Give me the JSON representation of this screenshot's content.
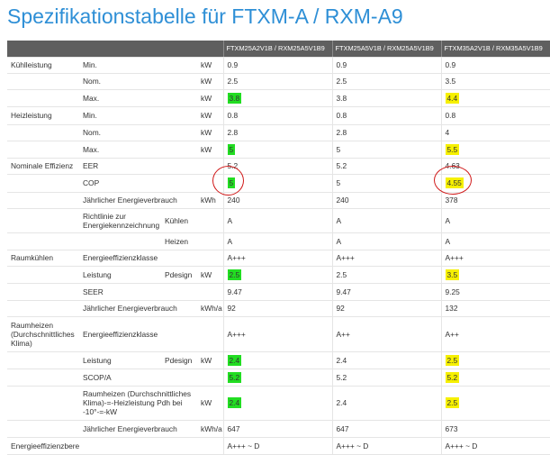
{
  "title": "Spezifikationstabelle für FTXM-A / RXM-A9",
  "headers": [
    "FTXM25A2V1B / RXM25A5V1B9",
    "FTXM25A5V1B / RXM25A5V1B9",
    "FTXM35A2V1B / RXM35A5V1B9"
  ],
  "rows": [
    {
      "g": "Kühlleistung",
      "p": "Min.",
      "u": "kW",
      "v": [
        "0.9",
        "0.9",
        "0.9"
      ]
    },
    {
      "g": "",
      "p": "Nom.",
      "u": "kW",
      "v": [
        "2.5",
        "2.5",
        "3.5"
      ]
    },
    {
      "g": "",
      "p": "Max.",
      "u": "kW",
      "v": [
        "3.8",
        "3.8",
        "4.4"
      ]
    },
    {
      "g": "Heizleistung",
      "p": "Min.",
      "u": "kW",
      "v": [
        "0.8",
        "0.8",
        "0.8"
      ]
    },
    {
      "g": "",
      "p": "Nom.",
      "u": "kW",
      "v": [
        "2.8",
        "2.8",
        "4"
      ]
    },
    {
      "g": "",
      "p": "Max.",
      "u": "kW",
      "v": [
        "5",
        "5",
        "5.5"
      ]
    },
    {
      "g": "Nominale Effizienz",
      "p": "EER",
      "u": "",
      "v": [
        "5.2",
        "5.2",
        "4.63"
      ]
    },
    {
      "g": "",
      "p": "COP",
      "u": "",
      "v": [
        "5",
        "5",
        "4.55"
      ]
    },
    {
      "g": "",
      "p": "Jährlicher Energieverbrauch",
      "u": "kWh",
      "v": [
        "240",
        "240",
        "378"
      ]
    },
    {
      "g": "",
      "p": "Richtlinie zur Energiekennzeichnung",
      "s": "Kühlen",
      "u": "",
      "v": [
        "A",
        "A",
        "A"
      ]
    },
    {
      "g": "",
      "p": "",
      "s": "Heizen",
      "u": "",
      "v": [
        "A",
        "A",
        "A"
      ]
    },
    {
      "g": "Raumkühlen",
      "p": "Energieeffizienzklasse",
      "u": "",
      "v": [
        "A+++",
        "A+++",
        "A+++"
      ]
    },
    {
      "g": "",
      "p": "Leistung",
      "s": "Pdesign",
      "u": "kW",
      "v": [
        "2.5",
        "2.5",
        "3.5"
      ]
    },
    {
      "g": "",
      "p": "SEER",
      "u": "",
      "v": [
        "9.47",
        "9.47",
        "9.25"
      ]
    },
    {
      "g": "",
      "p": "Jährlicher Energieverbrauch",
      "u": "kWh/a",
      "v": [
        "92",
        "92",
        "132"
      ]
    },
    {
      "g": "Raumheizen (Durchschnittliches Klima)",
      "p": "Energieeffizienzklasse",
      "u": "",
      "v": [
        "A+++",
        "A++",
        "A++"
      ]
    },
    {
      "g": "",
      "p": "Leistung",
      "s": "Pdesign",
      "u": "kW",
      "v": [
        "2.4",
        "2.4",
        "2.5"
      ]
    },
    {
      "g": "",
      "p": "SCOP/A",
      "u": "",
      "v": [
        "5.2",
        "5.2",
        "5.2"
      ]
    },
    {
      "g": "",
      "p": "Raumheizen (Durchschnittliches Klima)-=-Heizleistung Pdh bei -10°-=-kW",
      "u": "kW",
      "v": [
        "2.4",
        "2.4",
        "2.5"
      ]
    },
    {
      "g": "",
      "p": "Jährlicher Energieverbrauch",
      "u": "kWh/a",
      "v": [
        "647",
        "647",
        "673"
      ]
    },
    {
      "g": "Energieeffizienzbereich",
      "p": "",
      "u": "",
      "v": [
        "A+++ ~ D",
        "A+++ ~ D",
        "A+++ ~ D"
      ]
    }
  ],
  "highlights": {
    "col1_color": "#22dd22",
    "col3_color": "#f6f000",
    "circle_color": "#d01818"
  }
}
